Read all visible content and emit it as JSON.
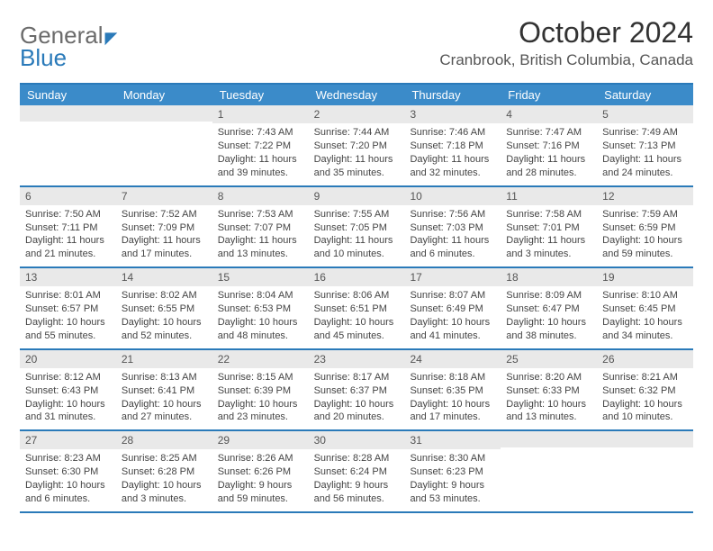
{
  "logo": {
    "general": "General",
    "blue": "Blue"
  },
  "title": "October 2024",
  "location": "Cranbrook, British Columbia, Canada",
  "dow": [
    "Sunday",
    "Monday",
    "Tuesday",
    "Wednesday",
    "Thursday",
    "Friday",
    "Saturday"
  ],
  "colors": {
    "header_bg": "#3b8bc9",
    "border": "#2a7ab9",
    "daybar_bg": "#e9e9e9",
    "text": "#444444"
  },
  "weeks": [
    [
      {
        "n": "",
        "sr": "",
        "ss": "",
        "dl1": "",
        "dl2": ""
      },
      {
        "n": "",
        "sr": "",
        "ss": "",
        "dl1": "",
        "dl2": ""
      },
      {
        "n": "1",
        "sr": "Sunrise: 7:43 AM",
        "ss": "Sunset: 7:22 PM",
        "dl1": "Daylight: 11 hours",
        "dl2": "and 39 minutes."
      },
      {
        "n": "2",
        "sr": "Sunrise: 7:44 AM",
        "ss": "Sunset: 7:20 PM",
        "dl1": "Daylight: 11 hours",
        "dl2": "and 35 minutes."
      },
      {
        "n": "3",
        "sr": "Sunrise: 7:46 AM",
        "ss": "Sunset: 7:18 PM",
        "dl1": "Daylight: 11 hours",
        "dl2": "and 32 minutes."
      },
      {
        "n": "4",
        "sr": "Sunrise: 7:47 AM",
        "ss": "Sunset: 7:16 PM",
        "dl1": "Daylight: 11 hours",
        "dl2": "and 28 minutes."
      },
      {
        "n": "5",
        "sr": "Sunrise: 7:49 AM",
        "ss": "Sunset: 7:13 PM",
        "dl1": "Daylight: 11 hours",
        "dl2": "and 24 minutes."
      }
    ],
    [
      {
        "n": "6",
        "sr": "Sunrise: 7:50 AM",
        "ss": "Sunset: 7:11 PM",
        "dl1": "Daylight: 11 hours",
        "dl2": "and 21 minutes."
      },
      {
        "n": "7",
        "sr": "Sunrise: 7:52 AM",
        "ss": "Sunset: 7:09 PM",
        "dl1": "Daylight: 11 hours",
        "dl2": "and 17 minutes."
      },
      {
        "n": "8",
        "sr": "Sunrise: 7:53 AM",
        "ss": "Sunset: 7:07 PM",
        "dl1": "Daylight: 11 hours",
        "dl2": "and 13 minutes."
      },
      {
        "n": "9",
        "sr": "Sunrise: 7:55 AM",
        "ss": "Sunset: 7:05 PM",
        "dl1": "Daylight: 11 hours",
        "dl2": "and 10 minutes."
      },
      {
        "n": "10",
        "sr": "Sunrise: 7:56 AM",
        "ss": "Sunset: 7:03 PM",
        "dl1": "Daylight: 11 hours",
        "dl2": "and 6 minutes."
      },
      {
        "n": "11",
        "sr": "Sunrise: 7:58 AM",
        "ss": "Sunset: 7:01 PM",
        "dl1": "Daylight: 11 hours",
        "dl2": "and 3 minutes."
      },
      {
        "n": "12",
        "sr": "Sunrise: 7:59 AM",
        "ss": "Sunset: 6:59 PM",
        "dl1": "Daylight: 10 hours",
        "dl2": "and 59 minutes."
      }
    ],
    [
      {
        "n": "13",
        "sr": "Sunrise: 8:01 AM",
        "ss": "Sunset: 6:57 PM",
        "dl1": "Daylight: 10 hours",
        "dl2": "and 55 minutes."
      },
      {
        "n": "14",
        "sr": "Sunrise: 8:02 AM",
        "ss": "Sunset: 6:55 PM",
        "dl1": "Daylight: 10 hours",
        "dl2": "and 52 minutes."
      },
      {
        "n": "15",
        "sr": "Sunrise: 8:04 AM",
        "ss": "Sunset: 6:53 PM",
        "dl1": "Daylight: 10 hours",
        "dl2": "and 48 minutes."
      },
      {
        "n": "16",
        "sr": "Sunrise: 8:06 AM",
        "ss": "Sunset: 6:51 PM",
        "dl1": "Daylight: 10 hours",
        "dl2": "and 45 minutes."
      },
      {
        "n": "17",
        "sr": "Sunrise: 8:07 AM",
        "ss": "Sunset: 6:49 PM",
        "dl1": "Daylight: 10 hours",
        "dl2": "and 41 minutes."
      },
      {
        "n": "18",
        "sr": "Sunrise: 8:09 AM",
        "ss": "Sunset: 6:47 PM",
        "dl1": "Daylight: 10 hours",
        "dl2": "and 38 minutes."
      },
      {
        "n": "19",
        "sr": "Sunrise: 8:10 AM",
        "ss": "Sunset: 6:45 PM",
        "dl1": "Daylight: 10 hours",
        "dl2": "and 34 minutes."
      }
    ],
    [
      {
        "n": "20",
        "sr": "Sunrise: 8:12 AM",
        "ss": "Sunset: 6:43 PM",
        "dl1": "Daylight: 10 hours",
        "dl2": "and 31 minutes."
      },
      {
        "n": "21",
        "sr": "Sunrise: 8:13 AM",
        "ss": "Sunset: 6:41 PM",
        "dl1": "Daylight: 10 hours",
        "dl2": "and 27 minutes."
      },
      {
        "n": "22",
        "sr": "Sunrise: 8:15 AM",
        "ss": "Sunset: 6:39 PM",
        "dl1": "Daylight: 10 hours",
        "dl2": "and 23 minutes."
      },
      {
        "n": "23",
        "sr": "Sunrise: 8:17 AM",
        "ss": "Sunset: 6:37 PM",
        "dl1": "Daylight: 10 hours",
        "dl2": "and 20 minutes."
      },
      {
        "n": "24",
        "sr": "Sunrise: 8:18 AM",
        "ss": "Sunset: 6:35 PM",
        "dl1": "Daylight: 10 hours",
        "dl2": "and 17 minutes."
      },
      {
        "n": "25",
        "sr": "Sunrise: 8:20 AM",
        "ss": "Sunset: 6:33 PM",
        "dl1": "Daylight: 10 hours",
        "dl2": "and 13 minutes."
      },
      {
        "n": "26",
        "sr": "Sunrise: 8:21 AM",
        "ss": "Sunset: 6:32 PM",
        "dl1": "Daylight: 10 hours",
        "dl2": "and 10 minutes."
      }
    ],
    [
      {
        "n": "27",
        "sr": "Sunrise: 8:23 AM",
        "ss": "Sunset: 6:30 PM",
        "dl1": "Daylight: 10 hours",
        "dl2": "and 6 minutes."
      },
      {
        "n": "28",
        "sr": "Sunrise: 8:25 AM",
        "ss": "Sunset: 6:28 PM",
        "dl1": "Daylight: 10 hours",
        "dl2": "and 3 minutes."
      },
      {
        "n": "29",
        "sr": "Sunrise: 8:26 AM",
        "ss": "Sunset: 6:26 PM",
        "dl1": "Daylight: 9 hours",
        "dl2": "and 59 minutes."
      },
      {
        "n": "30",
        "sr": "Sunrise: 8:28 AM",
        "ss": "Sunset: 6:24 PM",
        "dl1": "Daylight: 9 hours",
        "dl2": "and 56 minutes."
      },
      {
        "n": "31",
        "sr": "Sunrise: 8:30 AM",
        "ss": "Sunset: 6:23 PM",
        "dl1": "Daylight: 9 hours",
        "dl2": "and 53 minutes."
      },
      {
        "n": "",
        "sr": "",
        "ss": "",
        "dl1": "",
        "dl2": ""
      },
      {
        "n": "",
        "sr": "",
        "ss": "",
        "dl1": "",
        "dl2": ""
      }
    ]
  ]
}
